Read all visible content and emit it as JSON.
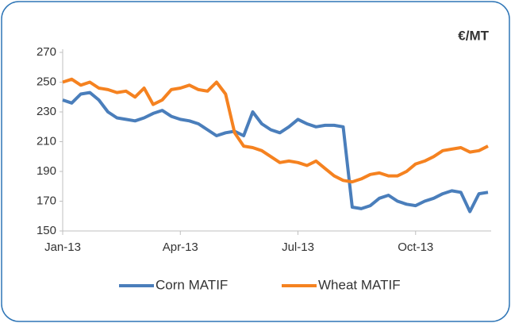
{
  "chart_data": {
    "type": "line",
    "annotations": [
      "€/MT"
    ],
    "categories": [
      "Jan-13",
      null,
      null,
      null,
      null,
      null,
      null,
      null,
      null,
      null,
      null,
      null,
      null,
      "Apr-13",
      null,
      null,
      null,
      null,
      null,
      null,
      null,
      null,
      null,
      null,
      null,
      null,
      "Jul-13",
      null,
      null,
      null,
      null,
      null,
      null,
      null,
      null,
      null,
      null,
      null,
      null,
      "Oct-13",
      null,
      null,
      null,
      null,
      null,
      null,
      null,
      null
    ],
    "series": [
      {
        "name": "Corn MATIF",
        "color": "#4a7ebb",
        "values": [
          238,
          236,
          242,
          243,
          238,
          230,
          226,
          225,
          224,
          226,
          229,
          231,
          227,
          225,
          224,
          222,
          218,
          214,
          216,
          217,
          214,
          230,
          222,
          218,
          216,
          220,
          225,
          222,
          220,
          221,
          221,
          220,
          166,
          165,
          167,
          172,
          174,
          170,
          168,
          167,
          170,
          172,
          175,
          177,
          176,
          163,
          175,
          176
        ]
      },
      {
        "name": "Wheat MATIF",
        "color": "#f58220",
        "values": [
          250,
          252,
          248,
          250,
          246,
          245,
          243,
          244,
          240,
          246,
          235,
          238,
          245,
          246,
          248,
          245,
          244,
          250,
          242,
          216,
          207,
          206,
          204,
          200,
          196,
          197,
          196,
          194,
          197,
          192,
          187,
          184,
          183,
          185,
          188,
          189,
          187,
          187,
          190,
          195,
          197,
          200,
          204,
          205,
          206,
          203,
          204,
          207
        ]
      }
    ],
    "ylim": [
      150,
      270
    ],
    "yticks": [
      150,
      170,
      190,
      210,
      230,
      250,
      270
    ],
    "legend": "bottom"
  }
}
